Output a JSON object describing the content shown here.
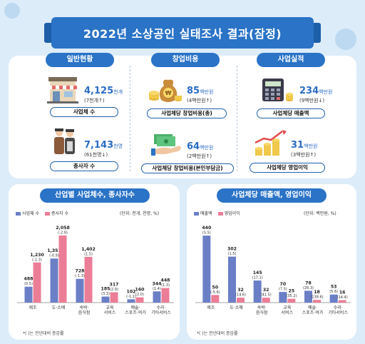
{
  "title": "2022년 소상공인 실태조사 결과(잠정)",
  "sections": {
    "general": "일반현황",
    "startup": "창업비용",
    "performance": "사업실적"
  },
  "metrics": {
    "businesses": {
      "value": "4,125",
      "unit": "천개",
      "change": "(7천개↑)",
      "label": "사업체 수",
      "icon": "storefront-icon"
    },
    "workers": {
      "value": "7,143",
      "unit": "천명",
      "change": "(61천명↓)",
      "label": "종사자 수",
      "icon": "workers-icon"
    },
    "startup_total": {
      "value": "85",
      "unit": "백만원",
      "change": "(4백만원↑)",
      "label": "사업체당 창업비용(총)",
      "icon": "money-bag-icon"
    },
    "startup_own": {
      "value": "64",
      "unit": "백만원",
      "change": "(2백만원↑)",
      "label": "사업체당 창업비용(본인부담금)",
      "icon": "cash-hand-icon"
    },
    "sales": {
      "value": "234",
      "unit": "백만원",
      "change": "(9백만원↓)",
      "label": "사업체당 매출액",
      "icon": "calculator-icon"
    },
    "profit": {
      "value": "31",
      "unit": "백만원",
      "change": "(3백만원↑)",
      "label": "사업체당 영업이익",
      "icon": "growth-coins-icon"
    }
  },
  "chart_left": {
    "title": "산업별 사업체수, 종사자수",
    "unit_note": "(단위: 천개, 천명, %)",
    "footnote": "*(   )는 전년대비 증감률"
  },
  "chart_right": {
    "title": "사업체당 매출액, 영업이익",
    "unit_note": "(단위: 백만원, %)",
    "footnote": "*(   )는 전년대비 증감률"
  },
  "colors": {
    "blue": "#6b7fc7",
    "pink": "#ec7d96",
    "accent": "#2a73c6"
  },
  "chart_data": [
    {
      "type": "bar",
      "title": "산업별 사업체수, 종사자수",
      "categories": [
        "제조",
        "도·소매",
        "숙박·\n음식점",
        "교육\n서비스",
        "예술·\n스포츠·여가",
        "수리·\n기타서비스"
      ],
      "series": [
        {
          "name": "사업체 수",
          "values": [
            488,
            1351,
            728,
            185,
            102,
            344
          ],
          "changes": [
            "(0.5)",
            "(-0.9)",
            "(-1.3)",
            "(3.3)",
            "(-1.1)",
            "(1.4)"
          ]
        },
        {
          "name": "종사자 수",
          "values": [
            1230,
            2058,
            1402,
            317,
            160,
            448
          ],
          "changes": [
            "(-1.3)",
            "(-2.9)",
            "(1.5)",
            "(2.9)",
            "(2.0)",
            "(1.3)"
          ]
        }
      ],
      "ylim": [
        0,
        2100
      ]
    },
    {
      "type": "bar",
      "title": "사업체당 매출액, 영업이익",
      "categories": [
        "제조",
        "도·소매",
        "숙박·\n음식점",
        "교육\n서비스",
        "예술·\n스포츠·여가",
        "수리·\n기타서비스"
      ],
      "series": [
        {
          "name": "매출액",
          "values": [
            440,
            302,
            145,
            70,
            78,
            53
          ],
          "changes": [
            "(5.5)",
            "(1.5)",
            "(17.1)",
            "(7.5)",
            "(26.3)",
            "(5.6)"
          ]
        },
        {
          "name": "영업이익",
          "values": [
            50,
            32,
            32,
            25,
            18,
            16
          ],
          "changes": [
            "(-5.6)",
            "(14.6)",
            "(41.5)",
            "(35.2)",
            "(138.6)",
            "(14.4)"
          ]
        }
      ],
      "ylim": [
        0,
        450
      ]
    }
  ]
}
